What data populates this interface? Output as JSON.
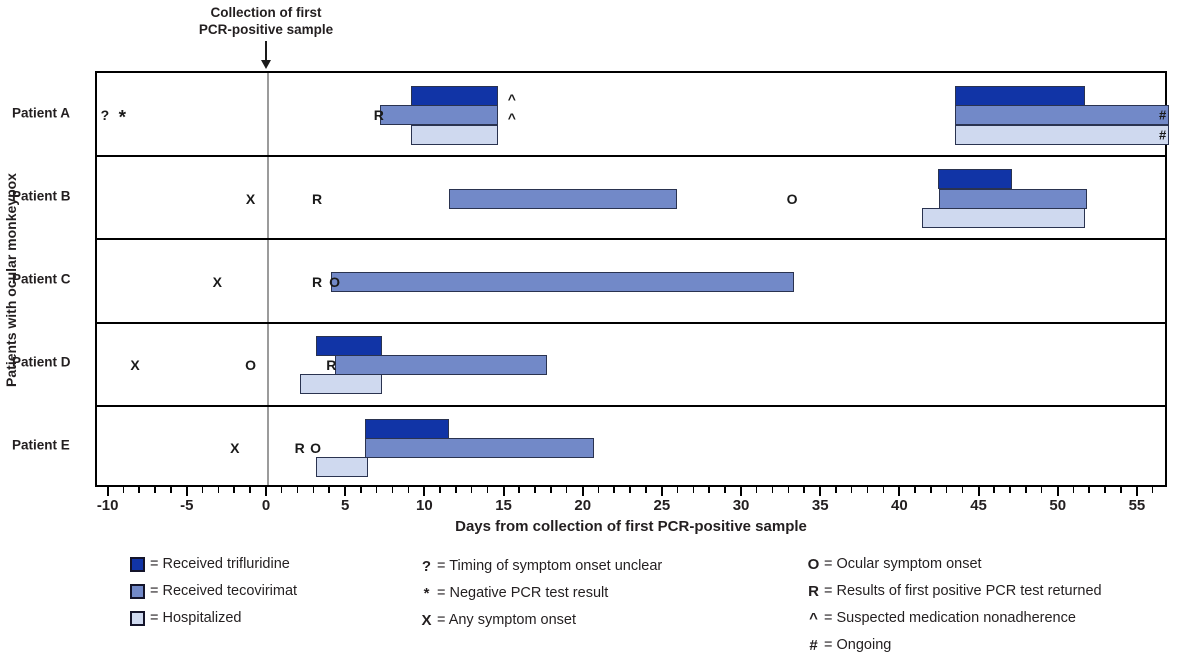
{
  "colors": {
    "trifluridine": "#1134A6",
    "tecovirimat": "#7289C8",
    "hospitalized": "#CFD9EF",
    "bar_border": "#2A3350",
    "reference_line": "#9B9B9B",
    "text": "#231F20"
  },
  "chart_data": {
    "type": "timeline-gantt",
    "annotation": {
      "line1": "Collection of first",
      "line2": "PCR-positive sample"
    },
    "reference_line_day": 0,
    "x_axis": {
      "label": "Days from collection of first PCR-positive sample",
      "min": -10.8,
      "max": 56.9,
      "major_tick_start": -10,
      "major_tick_end": 55,
      "major_tick_step": 5,
      "minor_tick_step": 1
    },
    "y_axis": {
      "label": "Patients with ocular monkeypox"
    },
    "patients": [
      {
        "label": "Patient A",
        "bars": [
          {
            "lane": "trifluridine",
            "start": 9.0,
            "end": 14.5
          },
          {
            "lane": "tecovirimat",
            "start": 7.1,
            "end": 14.5
          },
          {
            "lane": "hospitalized",
            "start": 9.0,
            "end": 14.5
          },
          {
            "lane": "trifluridine",
            "start": 43.4,
            "end": 51.6
          },
          {
            "lane": "tecovirimat",
            "start": 43.4,
            "end": 56.9,
            "ongoing": true
          },
          {
            "lane": "hospitalized",
            "start": 43.4,
            "end": 56.9,
            "ongoing": true
          }
        ],
        "markers": [
          {
            "symbol": "?",
            "day": -10.3,
            "lane": "center"
          },
          {
            "symbol": "*",
            "day": -9.2,
            "lane": "center"
          },
          {
            "symbol": "R",
            "day": 7.0,
            "lane": "center"
          },
          {
            "symbol": "^",
            "day": 15.4,
            "lane": "trifluridine"
          },
          {
            "symbol": "^",
            "day": 15.4,
            "lane": "tecovirimat"
          },
          {
            "symbol": "#",
            "day": 56.5,
            "lane": "tecovirimat"
          },
          {
            "symbol": "#",
            "day": 56.5,
            "lane": "hospitalized"
          }
        ]
      },
      {
        "label": "Patient B",
        "bars": [
          {
            "lane": "tecovirimat",
            "start": 11.4,
            "end": 25.8
          },
          {
            "lane": "trifluridine",
            "start": 42.3,
            "end": 47.0
          },
          {
            "lane": "tecovirimat",
            "start": 42.4,
            "end": 51.7
          },
          {
            "lane": "hospitalized",
            "start": 41.3,
            "end": 51.6
          }
        ],
        "markers": [
          {
            "symbol": "X",
            "day": -1.1,
            "lane": "center"
          },
          {
            "symbol": "R",
            "day": 3.1,
            "lane": "center"
          },
          {
            "symbol": "O",
            "day": 33.1,
            "lane": "center"
          }
        ]
      },
      {
        "label": "Patient C",
        "bars": [
          {
            "lane": "tecovirimat",
            "start": 4.0,
            "end": 33.2
          }
        ],
        "markers": [
          {
            "symbol": "X",
            "day": -3.2,
            "lane": "center"
          },
          {
            "symbol": "R",
            "day": 3.1,
            "lane": "center"
          },
          {
            "symbol": "O",
            "day": 4.2,
            "lane": "center"
          }
        ]
      },
      {
        "label": "Patient D",
        "bars": [
          {
            "lane": "trifluridine",
            "start": 3.0,
            "end": 7.2
          },
          {
            "lane": "tecovirimat",
            "start": 4.2,
            "end": 17.6
          },
          {
            "lane": "hospitalized",
            "start": 2.0,
            "end": 7.2
          }
        ],
        "markers": [
          {
            "symbol": "X",
            "day": -8.4,
            "lane": "center"
          },
          {
            "symbol": "O",
            "day": -1.1,
            "lane": "center"
          },
          {
            "symbol": "R",
            "day": 4.0,
            "lane": "tecovirimat"
          }
        ]
      },
      {
        "label": "Patient E",
        "bars": [
          {
            "lane": "trifluridine",
            "start": 6.1,
            "end": 11.4
          },
          {
            "lane": "tecovirimat",
            "start": 6.1,
            "end": 20.6
          },
          {
            "lane": "hospitalized",
            "start": 3.0,
            "end": 6.3
          }
        ],
        "markers": [
          {
            "symbol": "X",
            "day": -2.1,
            "lane": "center"
          },
          {
            "symbol": "R",
            "day": 2.0,
            "lane": "center"
          },
          {
            "symbol": "O",
            "day": 3.0,
            "lane": "center"
          }
        ]
      }
    ]
  },
  "legend": {
    "swatches": [
      {
        "key": "trifluridine",
        "label": "Received trifluridine"
      },
      {
        "key": "tecovirimat",
        "label": "Received tecovirimat"
      },
      {
        "key": "hospitalized",
        "label": "Hospitalized"
      }
    ],
    "middle": [
      {
        "symbol": "?",
        "label": "Timing of symptom onset unclear"
      },
      {
        "symbol": "*",
        "label": "Negative PCR test result"
      },
      {
        "symbol": "X",
        "label": "Any symptom onset"
      }
    ],
    "right": [
      {
        "symbol": "O",
        "label": "Ocular symptom onset"
      },
      {
        "symbol": "R",
        "label": "Results of first positive PCR test returned"
      },
      {
        "symbol": "^",
        "label": "Suspected medication nonadherence"
      },
      {
        "symbol": "#",
        "label": "Ongoing"
      }
    ]
  }
}
